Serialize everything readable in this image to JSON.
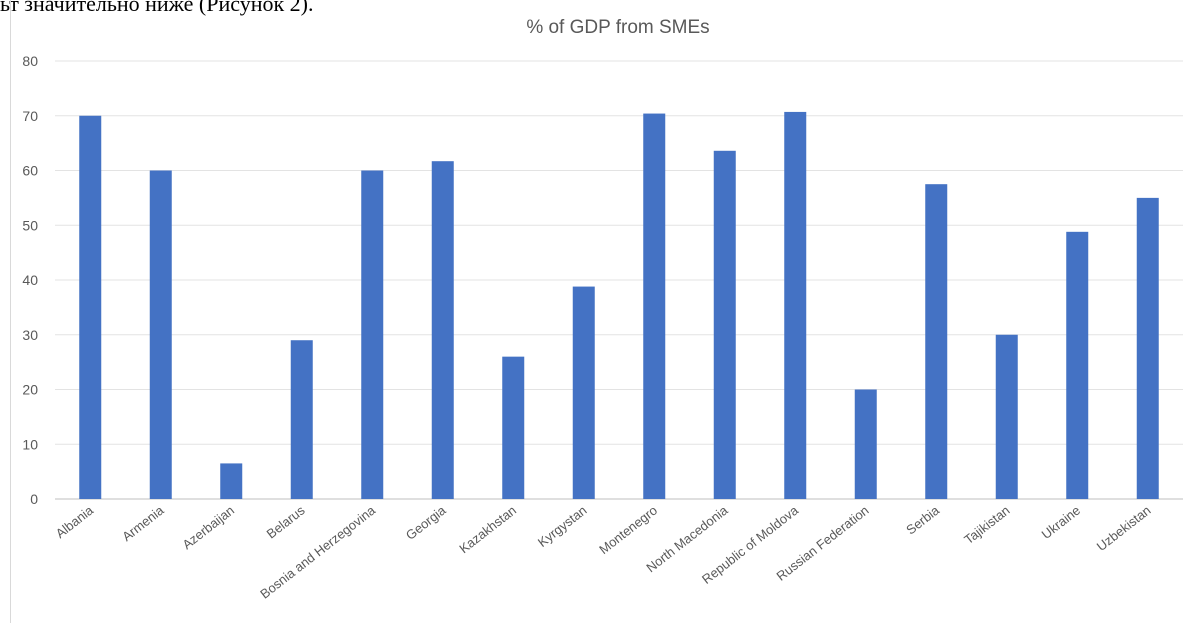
{
  "document": {
    "text_above_chart": "ьт значительно ниже (Рисунок 2)."
  },
  "chart_data": {
    "type": "bar",
    "title": "% of GDP from SMEs",
    "xlabel": "",
    "ylabel": "",
    "ylim": [
      0,
      80
    ],
    "yticks": [
      0,
      10,
      20,
      30,
      40,
      50,
      60,
      70,
      80
    ],
    "grid": true,
    "legend": "none",
    "bar_color": "#4472C4",
    "categories": [
      "Albania",
      "Armenia",
      "Azerbaijan",
      "Belarus",
      "Bosnia and Herzegovina",
      "Georgia",
      "Kazakhstan",
      "Kyrgystan",
      "Montenegro",
      "North Macedonia",
      "Republic of Moldova",
      "Russian Federation",
      "Serbia",
      "Tajikistan",
      "Ukraine",
      "Uzbekistan"
    ],
    "values": [
      70,
      60,
      6.5,
      29,
      60,
      61.7,
      26,
      38.8,
      70.4,
      63.6,
      70.7,
      20,
      57.5,
      30,
      48.8,
      55
    ]
  }
}
